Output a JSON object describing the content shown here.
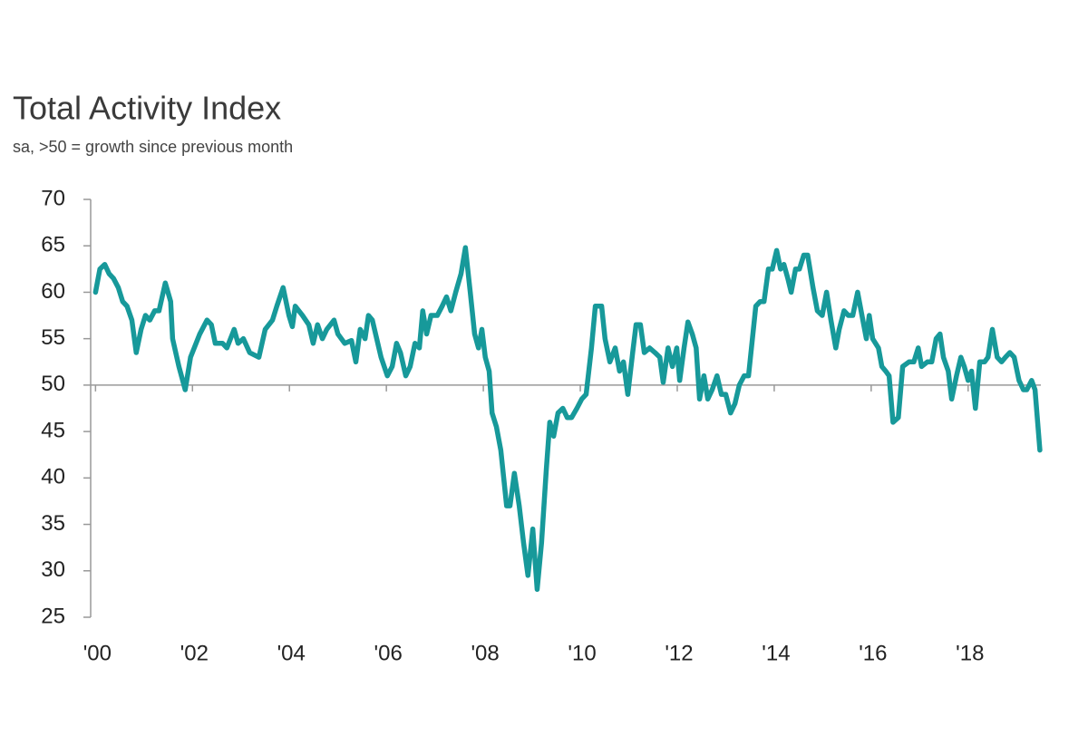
{
  "chart_data": {
    "type": "line",
    "title": "Total Activity Index",
    "subtitle": "sa, >50 = growth since previous month",
    "color": "#17999a",
    "reference_line": 50,
    "xlim": [
      1999.9,
      2019.5
    ],
    "xticks": [
      {
        "value": 2000,
        "label": "'00"
      },
      {
        "value": 2002,
        "label": "'02"
      },
      {
        "value": 2004,
        "label": "'04"
      },
      {
        "value": 2006,
        "label": "'06"
      },
      {
        "value": 2008,
        "label": "'08"
      },
      {
        "value": 2010,
        "label": "'10"
      },
      {
        "value": 2012,
        "label": "'12"
      },
      {
        "value": 2014,
        "label": "'14"
      },
      {
        "value": 2016,
        "label": "'16"
      },
      {
        "value": 2018,
        "label": "'18"
      }
    ],
    "ylim": [
      25,
      70
    ],
    "yticks": [
      25,
      30,
      35,
      40,
      45,
      50,
      55,
      60,
      65,
      70
    ],
    "x": [
      2000.0,
      2000.09,
      2000.19,
      2000.28,
      2000.37,
      2000.47,
      2000.56,
      2000.65,
      2000.75,
      2000.84,
      2000.94,
      2001.03,
      2001.12,
      2001.22,
      2001.31,
      2001.44,
      2001.55,
      2001.59,
      2001.72,
      2001.85,
      2001.96,
      2002.15,
      2002.3,
      2002.39,
      2002.47,
      2002.62,
      2002.71,
      2002.86,
      2002.94,
      2003.05,
      2003.18,
      2003.37,
      2003.5,
      2003.65,
      2003.74,
      2003.87,
      2003.99,
      2004.06,
      2004.12,
      2004.27,
      2004.4,
      2004.49,
      2004.58,
      2004.68,
      2004.77,
      2004.92,
      2005.0,
      2005.14,
      2005.28,
      2005.37,
      2005.46,
      2005.56,
      2005.63,
      2005.71,
      2005.8,
      2005.89,
      2006.02,
      2006.12,
      2006.21,
      2006.29,
      2006.4,
      2006.49,
      2006.59,
      2006.68,
      2006.75,
      2006.83,
      2006.92,
      2007.05,
      2007.15,
      2007.24,
      2007.33,
      2007.43,
      2007.54,
      2007.63,
      2007.73,
      2007.82,
      2007.9,
      2007.97,
      2008.04,
      2008.12,
      2008.18,
      2008.27,
      2008.36,
      2008.42,
      2008.48,
      2008.55,
      2008.64,
      2008.74,
      2008.83,
      2008.92,
      2009.02,
      2009.11,
      2009.2,
      2009.3,
      2009.37,
      2009.45,
      2009.54,
      2009.64,
      2009.73,
      2009.82,
      2009.93,
      2010.03,
      2010.12,
      2010.23,
      2010.31,
      2010.44,
      2010.51,
      2010.61,
      2010.72,
      2010.81,
      2010.89,
      2010.98,
      2011.08,
      2011.15,
      2011.24,
      2011.32,
      2011.43,
      2011.54,
      2011.64,
      2011.71,
      2011.81,
      2011.9,
      2011.99,
      2012.05,
      2012.14,
      2012.22,
      2012.31,
      2012.39,
      2012.46,
      2012.55,
      2012.63,
      2012.72,
      2012.82,
      2012.91,
      2013.0,
      2013.1,
      2013.19,
      2013.28,
      2013.38,
      2013.47,
      2013.55,
      2013.62,
      2013.71,
      2013.79,
      2013.88,
      2013.96,
      2014.05,
      2014.13,
      2014.2,
      2014.28,
      2014.35,
      2014.44,
      2014.52,
      2014.61,
      2014.69,
      2014.8,
      2014.89,
      2014.99,
      2015.08,
      2015.17,
      2015.27,
      2015.34,
      2015.44,
      2015.53,
      2015.62,
      2015.72,
      2015.81,
      2015.9,
      2015.96,
      2016.03,
      2016.15,
      2016.22,
      2016.3,
      2016.37,
      2016.45,
      2016.56,
      2016.65,
      2016.78,
      2016.88,
      2016.97,
      2017.04,
      2017.16,
      2017.25,
      2017.34,
      2017.42,
      2017.49,
      2017.59,
      2017.66,
      2017.76,
      2017.85,
      2017.92,
      2018.0,
      2018.07,
      2018.15,
      2018.24,
      2018.34,
      2018.41,
      2018.5,
      2018.6,
      2018.69,
      2018.77,
      2018.86,
      2018.95,
      2019.05,
      2019.14,
      2019.21,
      2019.31,
      2019.38,
      2019.48
    ],
    "values": [
      60,
      62.5,
      63,
      62,
      61.5,
      60.5,
      59,
      58.5,
      57,
      53.5,
      56,
      57.5,
      57,
      58,
      58,
      61,
      59,
      55,
      52,
      49.5,
      53,
      55.5,
      57,
      56.5,
      54.5,
      54.5,
      54,
      56,
      54.5,
      55,
      53.5,
      53,
      56,
      57,
      58.5,
      60.5,
      57.5,
      56.3,
      58.5,
      57.5,
      56.5,
      54.5,
      56.5,
      55,
      56,
      57,
      55.5,
      54.5,
      54.8,
      52.5,
      56,
      55,
      57.5,
      57,
      55,
      53,
      51,
      52,
      54.5,
      53.5,
      51,
      52,
      54.5,
      54,
      58,
      55.5,
      57.5,
      57.5,
      58.5,
      59.5,
      58,
      60,
      62,
      64.8,
      60,
      55.5,
      54,
      56,
      53,
      51.5,
      47,
      45.5,
      43,
      40,
      37,
      37,
      40.5,
      37,
      33,
      29.5,
      34.5,
      28,
      33,
      41,
      46,
      44.5,
      47,
      47.5,
      46.5,
      46.5,
      47.5,
      48.5,
      49,
      54,
      58.5,
      58.5,
      55,
      52.5,
      54,
      51.5,
      52.5,
      49,
      53.5,
      56.5,
      56.5,
      53.5,
      54,
      53.5,
      53,
      50.3,
      54,
      52,
      54,
      50.5,
      54,
      56.8,
      55.5,
      54,
      48.5,
      51,
      48.5,
      49.5,
      51,
      49,
      49,
      47,
      48,
      50,
      51,
      51,
      55,
      58.5,
      59,
      59,
      62.5,
      62.5,
      64.5,
      62.5,
      63,
      61.5,
      60,
      62.5,
      62.5,
      64,
      64,
      60.5,
      58,
      57.5,
      60,
      57,
      54,
      56,
      58,
      57.5,
      57.5,
      60,
      57.5,
      55,
      57.5,
      55,
      54,
      52,
      51.5,
      51,
      46,
      46.5,
      52,
      52.5,
      52.5,
      54,
      52,
      52.5,
      52.5,
      55,
      55.5,
      53,
      51.5,
      48.5,
      51,
      53,
      52,
      50.5,
      51.5,
      47.5,
      52.5,
      52.5,
      53,
      56,
      53,
      52.5,
      53,
      53.5,
      53,
      50.5,
      49.5,
      49.5,
      50.5,
      49.5,
      43
    ]
  }
}
